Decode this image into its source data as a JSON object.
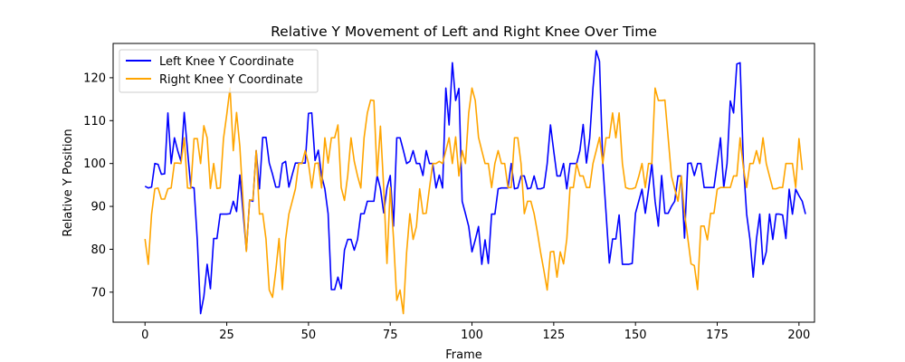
{
  "chart_data": {
    "type": "line",
    "title": "Relative Y Movement of Left and Right Knee Over Time",
    "xlabel": "Frame",
    "ylabel": "Relative Y Position",
    "xlim": [
      -9.75,
      204.75
    ],
    "ylim": [
      63,
      128
    ],
    "xticks": [
      0,
      25,
      50,
      75,
      100,
      125,
      150,
      175,
      200
    ],
    "yticks": [
      70,
      80,
      90,
      100,
      110,
      120
    ],
    "grid": false,
    "legend": "top-left",
    "series": [
      {
        "name": "Left Knee Y Coordinate",
        "color": "#0000ff",
        "values": [
          94.7,
          94.3,
          94.5,
          100,
          99.8,
          97.5,
          97.6,
          111.8,
          100,
          106,
          103,
          100.5,
          111.9,
          103,
          94.5,
          94.3,
          82,
          65,
          69,
          76.5,
          70.8,
          82.5,
          82.5,
          88.2,
          88.2,
          88.2,
          88.3,
          91.2,
          88.8,
          97.3,
          88.6,
          79.7,
          91.5,
          91.2,
          103,
          94.1,
          106.1,
          106.1,
          100.1,
          97.5,
          94.5,
          94.5,
          100,
          100.5,
          94.5,
          97.3,
          100.1,
          100.1,
          100.1,
          100.1,
          111.7,
          111.8,
          100.7,
          103.1,
          97.2,
          94.1,
          88.3,
          70.6,
          70.6,
          73.5,
          70.8,
          79.8,
          82.3,
          82.3,
          79.8,
          82.3,
          88.3,
          88.3,
          91.2,
          91.2,
          91.2,
          97.2,
          94.1,
          88.5,
          94.3,
          97.2,
          85.4,
          106,
          106,
          103.1,
          100,
          100.5,
          103,
          100,
          100,
          97.2,
          103,
          100,
          100,
          94.3,
          97.3,
          94.3,
          117.6,
          109,
          123.5,
          114.7,
          117.5,
          91.2,
          88.3,
          85.3,
          79.4,
          82.2,
          85.3,
          76.5,
          82.2,
          76.7,
          88.2,
          88.2,
          94.1,
          94.3,
          94.3,
          94.3,
          100,
          94.1,
          94.3,
          97.1,
          97.1,
          94.1,
          94.3,
          97.1,
          94.1,
          94.1,
          94.4,
          100,
          109,
          102.9,
          97.1,
          97.1,
          100,
          94.1,
          100,
          100,
          100,
          103,
          109.1,
          100.1,
          105.9,
          117.6,
          126.3,
          123.8,
          100,
          88.5,
          76.8,
          82.4,
          82.4,
          88,
          76.5,
          76.5,
          76.5,
          76.7,
          88.4,
          91.2,
          94,
          88.4,
          94,
          100,
          91.2,
          85.4,
          97.2,
          88.4,
          88.4,
          90,
          91.2,
          97.1,
          97.1,
          82.6,
          100,
          100.1,
          97.2,
          100,
          100,
          94.4,
          94.4,
          94.4,
          94.4,
          100,
          106,
          94.4,
          100,
          114.6,
          111.8,
          123.2,
          123.5,
          100,
          88.2,
          82.4,
          73.5,
          82.4,
          88.2,
          76.5,
          79.4,
          88.2,
          82.3,
          88.2,
          88.2,
          88,
          82.5,
          94,
          88.2,
          94,
          92.5,
          91.2,
          88.2
        ]
      },
      {
        "name": "Right Knee Y Coordinate",
        "color": "#ffa500",
        "values": [
          82.4,
          76.5,
          88.1,
          94.1,
          94.3,
          91.7,
          91.7,
          94.1,
          94.3,
          100.1,
          100.1,
          100,
          106,
          94.3,
          94.2,
          105.8,
          105.8,
          100,
          108.8,
          106,
          94.2,
          100,
          94.2,
          94.3,
          105.8,
          111.4,
          117.6,
          103,
          111.9,
          104,
          91.1,
          79.5,
          91.5,
          91.5,
          103,
          88.2,
          88.3,
          82.4,
          70.5,
          68.8,
          75,
          82.5,
          70.6,
          82.3,
          88.2,
          91.1,
          94.1,
          100,
          100,
          103,
          100,
          94.3,
          100,
          100.1,
          94.3,
          106,
          100.1,
          106,
          106,
          109,
          94.4,
          91.4,
          97.2,
          106,
          100.5,
          97.1,
          94.3,
          106,
          111.8,
          114.8,
          114.7,
          97.1,
          108.7,
          94.3,
          76.7,
          94.4,
          82.5,
          68.1,
          70.5,
          65,
          79.2,
          88.3,
          82.3,
          85.3,
          94.1,
          88.3,
          88.4,
          94.3,
          100,
          100,
          100.5,
          100,
          103,
          106,
          100,
          106.2,
          97.1,
          103,
          100,
          111.8,
          117.6,
          114.7,
          106.1,
          103,
          100,
          100,
          94.4,
          100,
          103,
          100,
          100,
          94.4,
          94.4,
          106,
          106,
          100,
          88.3,
          91.2,
          91.2,
          88.3,
          84,
          79.2,
          75,
          70.5,
          79.4,
          79.5,
          73.5,
          79.4,
          76.6,
          82.4,
          94.4,
          94.4,
          100,
          97.1,
          97.1,
          94.4,
          94.4,
          100,
          103,
          106.1,
          100,
          106,
          106,
          111.8,
          106,
          111.8,
          100,
          94.4,
          94.1,
          94.1,
          94.4,
          97,
          100,
          94.4,
          100,
          100,
          117.6,
          114.7,
          114.7,
          114.8,
          106,
          97.1,
          94.1,
          91.2,
          97.1,
          88.4,
          82.6,
          76.6,
          76.2,
          70.6,
          85.4,
          85.4,
          82.2,
          88.4,
          88.4,
          94,
          94.4,
          94.4,
          94.4,
          94.4,
          97.1,
          97.1,
          106,
          99,
          94.4,
          100,
          100,
          103,
          100,
          106,
          100,
          97,
          94.1,
          94.1,
          94.4,
          94.4,
          100,
          100,
          100,
          94.4,
          105.8,
          98.5
        ]
      }
    ]
  }
}
